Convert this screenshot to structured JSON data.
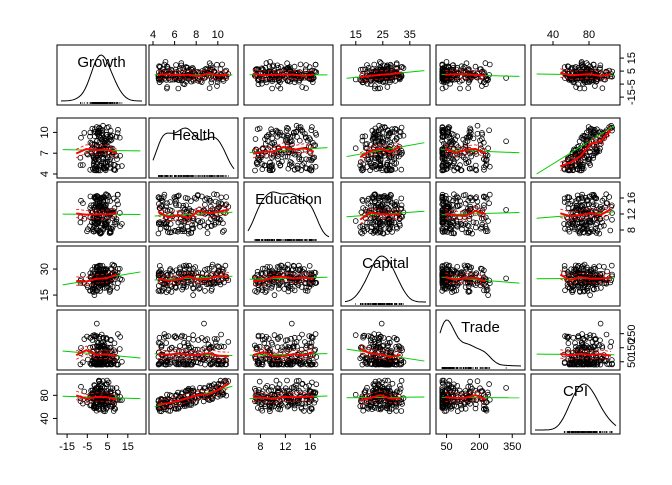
{
  "chart_data": {
    "type": "scatter",
    "variables": [
      "Growth",
      "Health",
      "Education",
      "Capital",
      "Trade",
      "CPI"
    ],
    "ranges": {
      "Growth": [
        -18,
        22
      ],
      "Health": [
        4,
        11.5
      ],
      "Education": [
        6,
        19
      ],
      "Capital": [
        11,
        41
      ],
      "Trade": [
        20,
        390
      ],
      "CPI": [
        20,
        110
      ]
    },
    "ticks": {
      "Growth": [
        "-15",
        "-5",
        "5",
        "15"
      ],
      "Health": [
        "4",
        "6",
        "8",
        "10"
      ],
      "Health_left": [
        "4",
        "7",
        "10"
      ],
      "Education": [
        "8",
        "12",
        "16"
      ],
      "Capital": [
        "15",
        "25",
        "35"
      ],
      "Capital_left": [
        "15",
        "30"
      ],
      "Trade": [
        "50",
        "200",
        "350"
      ],
      "Trade_right": [
        "50",
        "150",
        "250"
      ],
      "CPI": [
        "40",
        "80"
      ],
      "CPI_left": [
        "40",
        "80"
      ],
      "Growth_right": [
        "-15",
        "-5",
        "5",
        "15"
      ],
      "Education_right": [
        "8",
        "12",
        "16"
      ]
    },
    "diagonal": "density",
    "upper_panels": "scatter with loess smooth and linear fit",
    "lower_panels": "scatter with loess smooth and linear fit",
    "colors": {
      "points": "#000000",
      "smooth": "#ff0000",
      "linear": "#00cc00",
      "spread": "#ff0000"
    }
  }
}
